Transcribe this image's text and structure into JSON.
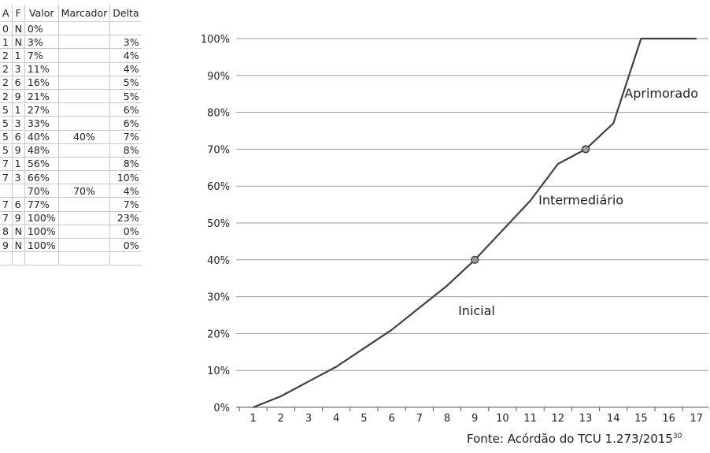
{
  "table": {
    "headers": [
      "A",
      "F",
      "Valor",
      "Marcador",
      "Delta"
    ],
    "rows": [
      [
        "0",
        "N",
        "0%",
        "",
        ""
      ],
      [
        "1",
        "N",
        "3%",
        "",
        "3%"
      ],
      [
        "2",
        "1",
        "7%",
        "",
        "4%"
      ],
      [
        "2",
        "3",
        "11%",
        "",
        "4%"
      ],
      [
        "2",
        "6",
        "16%",
        "",
        "5%"
      ],
      [
        "2",
        "9",
        "21%",
        "",
        "5%"
      ],
      [
        "5",
        "1",
        "27%",
        "",
        "6%"
      ],
      [
        "5",
        "3",
        "33%",
        "",
        "6%"
      ],
      [
        "5",
        "6",
        "40%",
        "40%",
        "7%"
      ],
      [
        "5",
        "9",
        "48%",
        "",
        "8%"
      ],
      [
        "7",
        "1",
        "56%",
        "",
        "8%"
      ],
      [
        "7",
        "3",
        "66%",
        "",
        "10%"
      ],
      [
        "",
        "",
        "70%",
        "70%",
        "4%"
      ],
      [
        "7",
        "6",
        "77%",
        "",
        "7%"
      ],
      [
        "7",
        "9",
        "100%",
        "",
        "23%"
      ],
      [
        "8",
        "N",
        "100%",
        "",
        "0%"
      ],
      [
        "9",
        "N",
        "100%",
        "",
        "0%"
      ],
      [
        "",
        "",
        "",
        "",
        ""
      ]
    ]
  },
  "chart_data": {
    "type": "line",
    "x": [
      1,
      2,
      3,
      4,
      5,
      6,
      7,
      8,
      9,
      10,
      11,
      12,
      13,
      14,
      15,
      16,
      17
    ],
    "x_tick_labels": [
      "1",
      "2",
      "3",
      "4",
      "5",
      "6",
      "7",
      "8",
      "9",
      "10",
      "11",
      "12",
      "13",
      "14",
      "15",
      "16",
      "17"
    ],
    "y_tick_labels": [
      "0%",
      "10%",
      "20%",
      "30%",
      "40%",
      "50%",
      "60%",
      "70%",
      "80%",
      "90%",
      "100%"
    ],
    "ylim": [
      0,
      100
    ],
    "series": [
      {
        "values": [
          0,
          3,
          7,
          11,
          16,
          21,
          27,
          33,
          40,
          48,
          56,
          66,
          70,
          77,
          100,
          100,
          100
        ],
        "color": "#404040"
      }
    ],
    "markers": [
      {
        "x": 9,
        "y": 40
      },
      {
        "x": 13,
        "y": 70
      }
    ],
    "annotations": [
      {
        "text": "Inicial",
        "x": 8.4,
        "y": 25
      },
      {
        "text": "Intermediário",
        "x": 11.3,
        "y": 55
      },
      {
        "text": "Aprimorado",
        "x": 14.4,
        "y": 84
      }
    ],
    "grid": true,
    "gridline_color": "#9a9a9a",
    "marker_color": "#999999"
  },
  "source": {
    "text": "Fonte: Acórdão do TCU 1.273/2015",
    "sup": "30"
  }
}
